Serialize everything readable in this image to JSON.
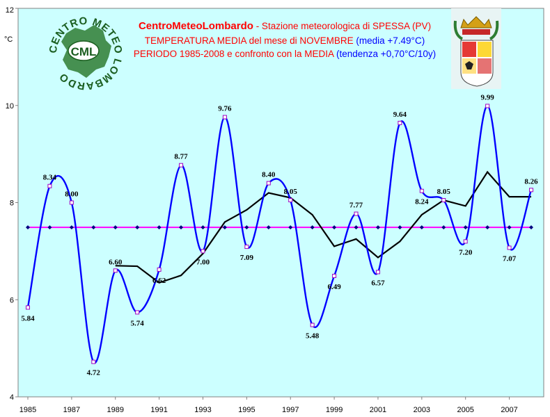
{
  "title": {
    "line1_brand": "CentroMeteoLombardo",
    "line1_rest": " - Stazione meteorologica di SPESSA (PV)",
    "line2_main": "TEMPERATURA MEDIA del mese di NOVEMBRE",
    "line2_paren": " (media +7.49°C)",
    "line3_main": "PERIODO 1985-2008 e confronto con la MEDIA",
    "line3_paren": " (tendenza +0,70°C/10y)"
  },
  "logo": {
    "ring_text": "CENTRO METEO LOMBARDO",
    "badge_text": "CML"
  },
  "colors": {
    "plot_bg": "#ccffff",
    "temperature_line": "#0000ff",
    "marker": "#a000c0",
    "mean_line": "#ff00ff",
    "trend_line": "#000000",
    "brand_text": "#ff0000",
    "blue_text": "#0000ff"
  },
  "chart_data": {
    "type": "line",
    "ylabel": "°C",
    "ylim": [
      4,
      12
    ],
    "yticks": [
      "4",
      "6",
      "8",
      "10",
      "12"
    ],
    "xticks": [
      "1985",
      "1987",
      "1989",
      "1991",
      "1993",
      "1995",
      "1997",
      "1999",
      "2001",
      "2003",
      "2005",
      "2007"
    ],
    "grid": false,
    "x": [
      1985,
      1986,
      1987,
      1988,
      1989,
      1990,
      1991,
      1992,
      1993,
      1994,
      1995,
      1996,
      1997,
      1998,
      1999,
      2000,
      2001,
      2002,
      2003,
      2004,
      2005,
      2006,
      2007,
      2008
    ],
    "series": [
      {
        "values": [
          5.84,
          8.34,
          8.0,
          4.72,
          6.6,
          5.74,
          6.62,
          8.77,
          7.0,
          9.76,
          7.09,
          8.4,
          8.05,
          5.48,
          6.49,
          7.77,
          6.57,
          9.64,
          8.24,
          8.05,
          7.2,
          9.99,
          7.07,
          8.26
        ],
        "labels": [
          "5.84",
          "8.34",
          "8.00",
          "4.72",
          "6.60",
          "5.74",
          "6.62",
          "8.77",
          "7.00",
          "9.76",
          "7.09",
          "8.40",
          "8.05",
          "5.48",
          "6.49",
          "7.77",
          "6.57",
          "9.64",
          "8.24",
          "8.05",
          "7.20",
          "9.99",
          "7.07",
          "8.26"
        ]
      },
      {
        "values": [
          7.49,
          7.49,
          7.49,
          7.49,
          7.49,
          7.49,
          7.49,
          7.49,
          7.49,
          7.49,
          7.49,
          7.49,
          7.49,
          7.49,
          7.49,
          7.49,
          7.49,
          7.49,
          7.49,
          7.49,
          7.49,
          7.49,
          7.49,
          7.49
        ]
      },
      {
        "x": [
          1989,
          1990,
          1991,
          1992,
          1993,
          1994,
          1995,
          1996,
          1997,
          1998,
          1999,
          2000,
          2001,
          2002,
          2003,
          2004,
          2005,
          2006,
          2007,
          2008
        ],
        "values": [
          6.7,
          6.69,
          6.35,
          6.5,
          6.95,
          7.6,
          7.85,
          8.2,
          8.1,
          7.75,
          7.1,
          7.25,
          6.87,
          7.2,
          7.75,
          8.05,
          7.93,
          8.63,
          8.12,
          8.12
        ]
      }
    ]
  }
}
